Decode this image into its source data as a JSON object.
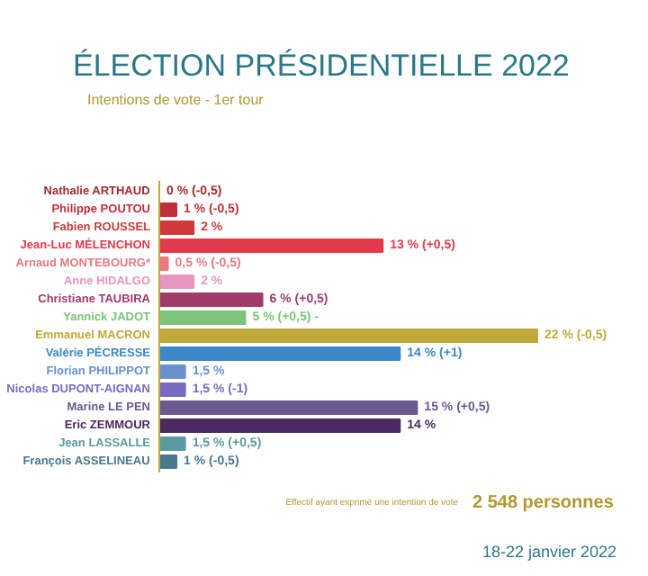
{
  "chart_data": {
    "type": "bar",
    "orientation": "horizontal",
    "title": "ÉLECTION PRÉSIDENTIELLE 2022",
    "subtitle": "Intentions de vote - 1er tour",
    "categories": [
      "Nathalie ARTHAUD",
      "Philippe POUTOU",
      "Fabien ROUSSEL",
      "Jean-Luc MÉLENCHON",
      "Arnaud MONTEBOURG*",
      "Anne HIDALGO",
      "Christiane TAUBIRA",
      "Yannick JADOT",
      "Emmanuel MACRON",
      "Valérie PÉCRESSE",
      "Florian PHILIPPOT",
      "Nicolas DUPONT-AIGNAN",
      "Marine LE PEN",
      "Eric ZEMMOUR",
      "Jean LASSALLE",
      "François ASSELINEAU"
    ],
    "values": [
      0,
      1,
      2,
      13,
      0.5,
      2,
      6,
      5,
      22,
      14,
      1.5,
      1.5,
      15,
      14,
      1.5,
      1
    ],
    "colors": [
      "#a52a2a",
      "#c0303a",
      "#d03a3a",
      "#e23a4a",
      "#e87a80",
      "#e896c0",
      "#a03c6a",
      "#7cc47a",
      "#c0a83a",
      "#3a88c8",
      "#6a90d0",
      "#7a6ac0",
      "#6a5a90",
      "#4a2a60",
      "#5a9aa0",
      "#4a7890"
    ],
    "value_labels": [
      "0 % (-0,5)",
      "1 % (-0,5)",
      "2 %",
      "13 % (+0,5)",
      "0,5 % (-0,5)",
      "2 %",
      "6 % (+0,5)",
      "5 % (+0,5) -",
      "22 % (-0,5)",
      "14 % (+1)",
      "1,5 %",
      "1,5 % (-1)",
      "15 % (+0,5)",
      "14 %",
      "1,5 % (+0,5)",
      "1 % (-0,5)"
    ],
    "annotations": [
      "Effectif ayant exprimé une intention de vote",
      "2 548 personnes",
      "18-22 janvier 2022"
    ]
  }
}
